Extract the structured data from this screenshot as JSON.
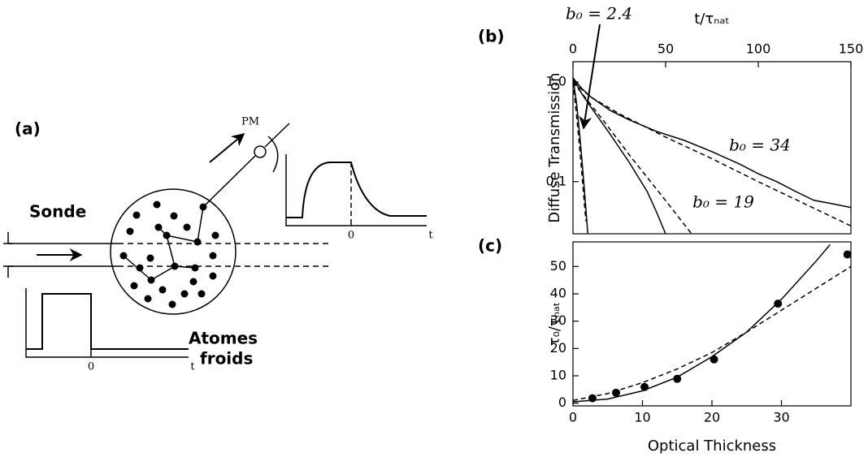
{
  "diagram": {
    "label": "(a)",
    "probe": "Sonde",
    "detector": "PM",
    "atoms": [
      "Atomes",
      "froids"
    ],
    "input_pulse": {
      "origin": "0",
      "axis": "t"
    },
    "output_signal": {
      "origin": "0",
      "axis": "t"
    }
  },
  "chart_data": [
    {
      "type": "line",
      "panel": "(b)",
      "xlabel": "t/τₙₐₜ",
      "ylabel": "Diffuse Transmission",
      "x_axis_side": "top",
      "log_y": true,
      "xlim": [
        0,
        150
      ],
      "xticks": [
        0,
        50,
        100,
        150
      ],
      "ylim": [
        0.03,
        1.6
      ],
      "yticks": [
        0.1,
        {
          "value": 1,
          "label": "1.0"
        }
      ],
      "annotations": [
        "b₀ = 2.4",
        "b₀ = 34",
        "b₀ = 19"
      ],
      "series": [
        {
          "color": "#000000",
          "line": "solid",
          "x": [
            0,
            5,
            10,
            20,
            30,
            45,
            60,
            75,
            90,
            100,
            110,
            120,
            130,
            140,
            150
          ],
          "values": [
            1.1,
            0.85,
            0.7,
            0.52,
            0.42,
            0.32,
            0.26,
            0.2,
            0.15,
            0.12,
            0.1,
            0.08,
            0.065,
            0.06,
            0.055
          ]
        },
        {
          "color": "#000000",
          "line": "dashed",
          "x": [
            0,
            10,
            25,
            50,
            75,
            100,
            125,
            150
          ],
          "values": [
            1.0,
            0.7,
            0.48,
            0.28,
            0.17,
            0.1,
            0.06,
            0.036
          ]
        },
        {
          "color": "#000000",
          "line": "solid",
          "x": [
            0,
            5,
            10,
            20,
            30,
            40,
            45,
            50
          ],
          "values": [
            1.1,
            0.75,
            0.55,
            0.3,
            0.16,
            0.08,
            0.05,
            0.03
          ]
        },
        {
          "color": "#000000",
          "line": "dashed",
          "x": [
            0,
            16,
            32,
            48,
            64
          ],
          "values": [
            1.0,
            0.42,
            0.17,
            0.072,
            0.03
          ]
        },
        {
          "color": "#000000",
          "line": "solid",
          "x": [
            0,
            2,
            4,
            6,
            8
          ],
          "values": [
            1.1,
            0.6,
            0.25,
            0.09,
            0.03
          ]
        },
        {
          "color": "#000000",
          "line": "dashed",
          "x": [
            0,
            2,
            4,
            6,
            7
          ],
          "values": [
            1.0,
            0.45,
            0.18,
            0.065,
            0.04
          ]
        }
      ]
    },
    {
      "type": "line",
      "panel": "(c)",
      "xlabel": "Optical Thickness",
      "ylabel": "τ₀/τₙₐₜ",
      "x_axis_side": "bottom",
      "log_y": false,
      "xlim": [
        0,
        40
      ],
      "xticks": [
        0,
        10,
        20,
        30
      ],
      "ylim": [
        -1,
        59
      ],
      "yticks": [
        0,
        10,
        20,
        30,
        40,
        50
      ],
      "series": [
        {
          "color": "#000000",
          "line": "solid",
          "x": [
            0,
            5,
            10,
            15,
            20,
            25,
            30,
            35,
            37
          ],
          "values": [
            0.5,
            1.5,
            4.5,
            9.5,
            17,
            26,
            38,
            52,
            58
          ]
        },
        {
          "color": "#000000",
          "line": "dashed",
          "x": [
            0,
            5,
            10,
            15,
            20,
            25,
            30,
            35,
            40
          ],
          "values": [
            1,
            3.5,
            7.5,
            12.5,
            18.5,
            26,
            34,
            42,
            50
          ]
        },
        {
          "color": "#000000",
          "line": "none",
          "marker": "circle",
          "x": [
            2.8,
            6.2,
            10.3,
            15,
            20.3,
            29.5,
            39.5
          ],
          "values": [
            1.8,
            3.8,
            5.9,
            8.9,
            16,
            36.4,
            54.4
          ]
        }
      ]
    }
  ]
}
